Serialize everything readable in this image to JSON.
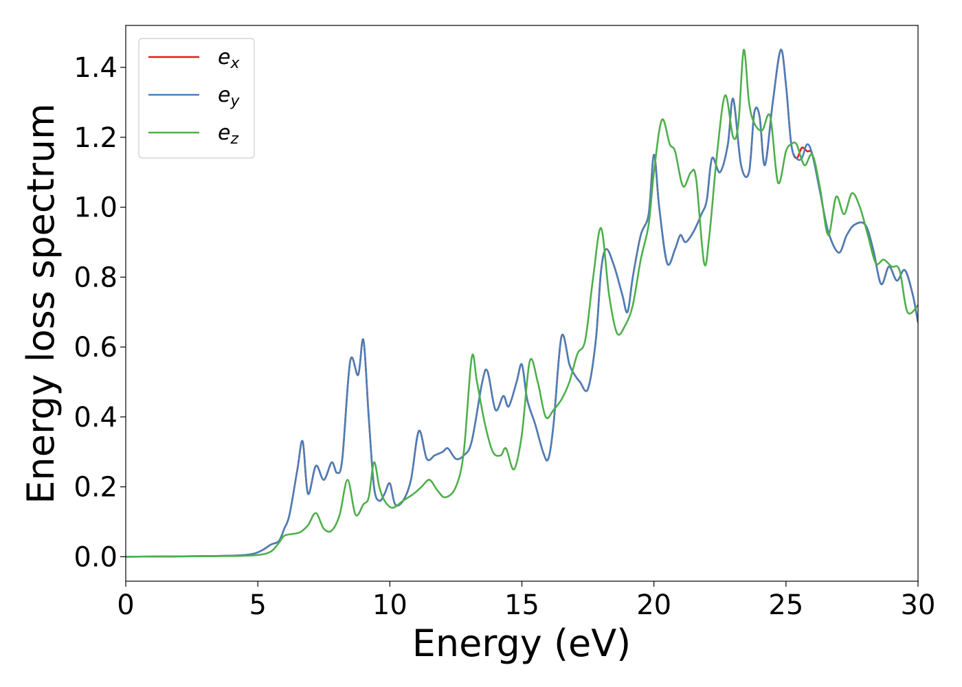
{
  "chart_data": {
    "type": "line",
    "title": "",
    "xlabel": "Energy (eV)",
    "ylabel": "Energy loss spectrum",
    "xlim": [
      0,
      30
    ],
    "ylim": [
      -0.07,
      1.52
    ],
    "xticks": [
      0,
      5,
      10,
      15,
      20,
      25,
      30
    ],
    "xtick_labels": [
      "0",
      "5",
      "10",
      "15",
      "20",
      "25",
      "30"
    ],
    "yticks": [
      0.0,
      0.2,
      0.4,
      0.6,
      0.8,
      1.0,
      1.2,
      1.4
    ],
    "ytick_labels": [
      "0.0",
      "0.2",
      "0.4",
      "0.6",
      "0.8",
      "1.0",
      "1.2",
      "1.4"
    ],
    "grid": false,
    "legend_position": "top-left",
    "series": [
      {
        "name": "e",
        "subscript": "x",
        "color": "#e41a1c",
        "x": [
          0,
          2,
          4,
          4.8,
          5.2,
          5.5,
          5.8,
          6.0,
          6.2,
          6.5,
          6.7,
          6.9,
          7.2,
          7.5,
          7.8,
          8.0,
          8.2,
          8.5,
          8.8,
          9.0,
          9.2,
          9.4,
          9.6,
          9.8,
          10.0,
          10.2,
          10.5,
          10.8,
          11.1,
          11.4,
          11.7,
          12.0,
          12.2,
          12.5,
          12.8,
          13.1,
          13.5,
          13.7,
          14.0,
          14.3,
          14.5,
          14.8,
          15.0,
          15.2,
          15.5,
          15.8,
          16.0,
          16.2,
          16.5,
          16.8,
          17.0,
          17.2,
          17.5,
          17.8,
          18.0,
          18.2,
          18.5,
          18.8,
          19.0,
          19.2,
          19.5,
          19.8,
          20.0,
          20.2,
          20.5,
          20.8,
          21.0,
          21.2,
          21.5,
          21.8,
          22.0,
          22.2,
          22.5,
          22.8,
          23.0,
          23.3,
          23.6,
          23.8,
          24.0,
          24.2,
          24.5,
          24.8,
          25.0,
          25.2,
          25.4,
          25.6,
          25.8,
          26.0,
          26.3,
          26.6,
          27.0,
          27.3,
          27.6,
          28.0,
          28.3,
          28.6,
          28.9,
          29.2,
          29.5,
          29.8,
          30.0
        ],
        "y": [
          0.0,
          0.001,
          0.003,
          0.008,
          0.02,
          0.035,
          0.045,
          0.08,
          0.12,
          0.25,
          0.33,
          0.18,
          0.26,
          0.22,
          0.27,
          0.24,
          0.28,
          0.56,
          0.52,
          0.62,
          0.4,
          0.2,
          0.16,
          0.18,
          0.21,
          0.15,
          0.16,
          0.22,
          0.36,
          0.28,
          0.29,
          0.3,
          0.31,
          0.28,
          0.29,
          0.33,
          0.5,
          0.53,
          0.42,
          0.46,
          0.43,
          0.5,
          0.55,
          0.45,
          0.38,
          0.3,
          0.28,
          0.38,
          0.63,
          0.55,
          0.52,
          0.5,
          0.48,
          0.62,
          0.82,
          0.88,
          0.83,
          0.75,
          0.7,
          0.8,
          0.92,
          0.98,
          1.15,
          1.0,
          0.84,
          0.88,
          0.92,
          0.9,
          0.93,
          0.98,
          1.02,
          1.14,
          1.1,
          1.18,
          1.31,
          1.12,
          1.1,
          1.27,
          1.26,
          1.12,
          1.3,
          1.45,
          1.35,
          1.18,
          1.14,
          1.17,
          1.16,
          1.15,
          1.04,
          0.93,
          0.87,
          0.92,
          0.95,
          0.95,
          0.88,
          0.78,
          0.83,
          0.79,
          0.82,
          0.75,
          0.67
        ]
      },
      {
        "name": "e",
        "subscript": "y",
        "color": "#4a7fb8",
        "x": [
          0,
          2,
          4,
          4.8,
          5.2,
          5.5,
          5.8,
          6.0,
          6.2,
          6.5,
          6.7,
          6.9,
          7.2,
          7.5,
          7.8,
          8.0,
          8.2,
          8.5,
          8.8,
          9.0,
          9.2,
          9.4,
          9.6,
          9.8,
          10.0,
          10.2,
          10.5,
          10.8,
          11.1,
          11.4,
          11.7,
          12.0,
          12.2,
          12.5,
          12.8,
          13.1,
          13.5,
          13.7,
          14.0,
          14.3,
          14.5,
          14.8,
          15.0,
          15.2,
          15.5,
          15.8,
          16.0,
          16.2,
          16.5,
          16.8,
          17.0,
          17.2,
          17.5,
          17.8,
          18.0,
          18.2,
          18.5,
          18.8,
          19.0,
          19.2,
          19.5,
          19.8,
          20.0,
          20.2,
          20.5,
          20.8,
          21.0,
          21.2,
          21.5,
          21.8,
          22.0,
          22.2,
          22.5,
          22.8,
          23.0,
          23.3,
          23.6,
          23.8,
          24.0,
          24.2,
          24.5,
          24.8,
          25.0,
          25.2,
          25.4,
          25.6,
          25.8,
          26.0,
          26.3,
          26.6,
          27.0,
          27.3,
          27.6,
          28.0,
          28.3,
          28.6,
          28.9,
          29.2,
          29.5,
          29.8,
          30.0
        ],
        "y": [
          0.0,
          0.001,
          0.003,
          0.008,
          0.02,
          0.035,
          0.045,
          0.08,
          0.12,
          0.25,
          0.33,
          0.18,
          0.26,
          0.22,
          0.27,
          0.24,
          0.28,
          0.56,
          0.52,
          0.62,
          0.4,
          0.2,
          0.16,
          0.18,
          0.21,
          0.15,
          0.16,
          0.22,
          0.36,
          0.28,
          0.29,
          0.3,
          0.31,
          0.28,
          0.29,
          0.33,
          0.5,
          0.53,
          0.42,
          0.46,
          0.43,
          0.5,
          0.55,
          0.45,
          0.38,
          0.3,
          0.28,
          0.38,
          0.63,
          0.55,
          0.52,
          0.5,
          0.48,
          0.62,
          0.82,
          0.88,
          0.83,
          0.75,
          0.7,
          0.8,
          0.92,
          0.98,
          1.15,
          1.0,
          0.84,
          0.88,
          0.92,
          0.9,
          0.93,
          0.98,
          1.02,
          1.14,
          1.1,
          1.18,
          1.31,
          1.12,
          1.1,
          1.27,
          1.26,
          1.12,
          1.3,
          1.45,
          1.35,
          1.18,
          1.14,
          1.14,
          1.18,
          1.15,
          1.04,
          0.93,
          0.87,
          0.92,
          0.95,
          0.95,
          0.88,
          0.78,
          0.83,
          0.79,
          0.82,
          0.75,
          0.67
        ]
      },
      {
        "name": "e",
        "subscript": "z",
        "color": "#4daf4a",
        "x": [
          0,
          2,
          4,
          5.0,
          5.5,
          5.8,
          6.0,
          6.3,
          6.6,
          6.9,
          7.2,
          7.5,
          7.8,
          8.1,
          8.4,
          8.7,
          9.0,
          9.2,
          9.4,
          9.6,
          9.8,
          10.1,
          10.5,
          10.9,
          11.2,
          11.5,
          11.8,
          12.1,
          12.5,
          12.8,
          13.1,
          13.3,
          13.6,
          13.9,
          14.2,
          14.4,
          14.7,
          15.0,
          15.3,
          15.6,
          15.9,
          16.2,
          16.5,
          16.8,
          17.1,
          17.4,
          17.7,
          18.0,
          18.3,
          18.6,
          18.9,
          19.2,
          19.5,
          19.8,
          20.0,
          20.3,
          20.6,
          20.8,
          21.1,
          21.4,
          21.6,
          21.9,
          22.1,
          22.4,
          22.7,
          23.0,
          23.2,
          23.4,
          23.6,
          23.8,
          24.1,
          24.4,
          24.7,
          25.0,
          25.2,
          25.4,
          25.7,
          26.0,
          26.3,
          26.6,
          26.9,
          27.2,
          27.5,
          27.8,
          28.1,
          28.4,
          28.7,
          29.0,
          29.3,
          29.6,
          30.0
        ],
        "y": [
          0.0,
          0.001,
          0.002,
          0.005,
          0.015,
          0.04,
          0.06,
          0.065,
          0.07,
          0.09,
          0.125,
          0.08,
          0.075,
          0.12,
          0.22,
          0.12,
          0.15,
          0.17,
          0.27,
          0.2,
          0.16,
          0.14,
          0.16,
          0.18,
          0.2,
          0.22,
          0.19,
          0.17,
          0.2,
          0.3,
          0.57,
          0.5,
          0.38,
          0.3,
          0.29,
          0.31,
          0.25,
          0.35,
          0.56,
          0.5,
          0.4,
          0.42,
          0.45,
          0.5,
          0.58,
          0.62,
          0.8,
          0.94,
          0.75,
          0.64,
          0.66,
          0.72,
          0.85,
          0.95,
          1.1,
          1.25,
          1.18,
          1.16,
          1.06,
          1.1,
          1.08,
          0.84,
          0.92,
          1.16,
          1.32,
          1.2,
          1.24,
          1.45,
          1.3,
          1.24,
          1.22,
          1.26,
          1.07,
          1.16,
          1.18,
          1.18,
          1.12,
          1.15,
          1.05,
          0.92,
          1.03,
          0.98,
          1.04,
          1.0,
          0.92,
          0.84,
          0.85,
          0.83,
          0.82,
          0.7,
          0.72
        ]
      }
    ]
  }
}
